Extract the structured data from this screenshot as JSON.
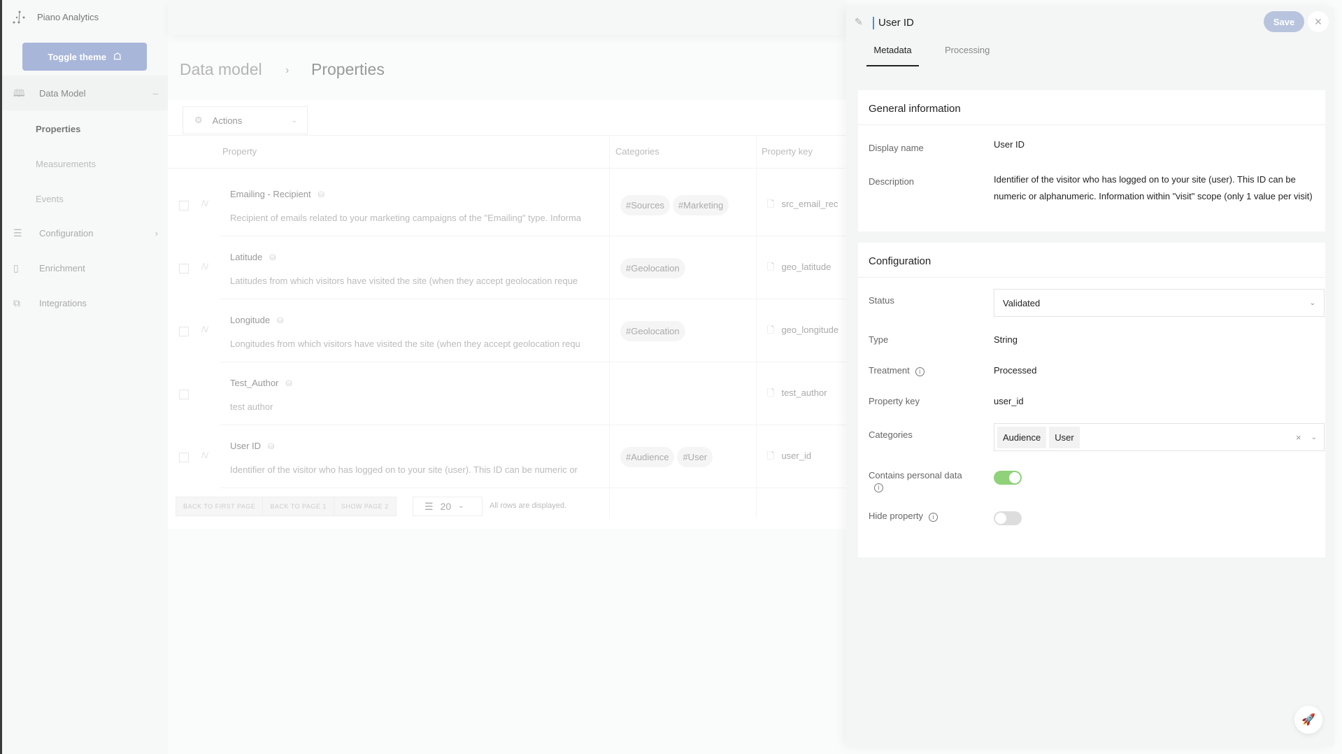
{
  "sidebar": {
    "brand": "Piano Analytics",
    "toggle_theme": "Toggle theme",
    "items": [
      {
        "label": "Data Model",
        "icon": "book-icon"
      },
      {
        "label": "Configuration",
        "icon": "sliders-icon"
      },
      {
        "label": "Enrichment",
        "icon": "panel-icon"
      },
      {
        "label": "Integrations",
        "icon": "copy-icon"
      }
    ],
    "subitems": [
      "Properties",
      "Measurements",
      "Events"
    ]
  },
  "breadcrumb": {
    "parent": "Data model",
    "current": "Properties"
  },
  "toolbar": {
    "actions": "Actions"
  },
  "table": {
    "headers": {
      "property": "Property",
      "categories": "Categories",
      "key": "Property key"
    },
    "rows": [
      {
        "title": "Emailing - Recipient",
        "desc": "Recipient of emails related to your marketing campaigns of the \"Emailing\" type. Informa",
        "cats": [
          "#Sources",
          "#Marketing"
        ],
        "key": "src_email_rec"
      },
      {
        "title": "Latitude",
        "desc": "Latitudes from which visitors have visited the site (when they accept geolocation reque",
        "cats": [
          "#Geolocation"
        ],
        "key": "geo_latitude"
      },
      {
        "title": "Longitude",
        "desc": "Longitudes from which visitors have visited the site (when they accept geolocation requ",
        "cats": [
          "#Geolocation"
        ],
        "key": "geo_longitude"
      },
      {
        "title": "Test_Author",
        "desc": "test author",
        "cats": [],
        "key": "test_author"
      },
      {
        "title": "User ID",
        "desc": "Identifier of the visitor who has logged on to your site (user). This ID can be numeric or",
        "cats": [
          "#Audience",
          "#User"
        ],
        "key": "user_id"
      }
    ]
  },
  "pagination": {
    "first": "BACK TO FIRST PAGE",
    "page1": "BACK TO PAGE 1",
    "page2": "SHOW PAGE 2",
    "page_size": "20",
    "status": "All rows are displayed."
  },
  "panel": {
    "title": "User ID",
    "save": "Save",
    "tabs": [
      "Metadata",
      "Processing"
    ],
    "active_tab": "Metadata",
    "general": {
      "heading": "General information",
      "display_name_label": "Display name",
      "display_name": "User ID",
      "description_label": "Description",
      "description": "Identifier of the visitor who has logged on to your site (user). This ID can be numeric or alphanumeric. Information within \"visit\" scope (only 1 value per visit)"
    },
    "config": {
      "heading": "Configuration",
      "status_label": "Status",
      "status": "Validated",
      "type_label": "Type",
      "type": "String",
      "treatment_label": "Treatment",
      "treatment": "Processed",
      "key_label": "Property key",
      "key": "user_id",
      "categories_label": "Categories",
      "categories": [
        "Audience",
        "User"
      ],
      "personal_label": "Contains personal data",
      "personal": true,
      "hide_label": "Hide property",
      "hide": false
    }
  },
  "colors": {
    "accent": "#4a90e2",
    "toggle_on": "#8fd27a",
    "button": "#a8b6da"
  }
}
